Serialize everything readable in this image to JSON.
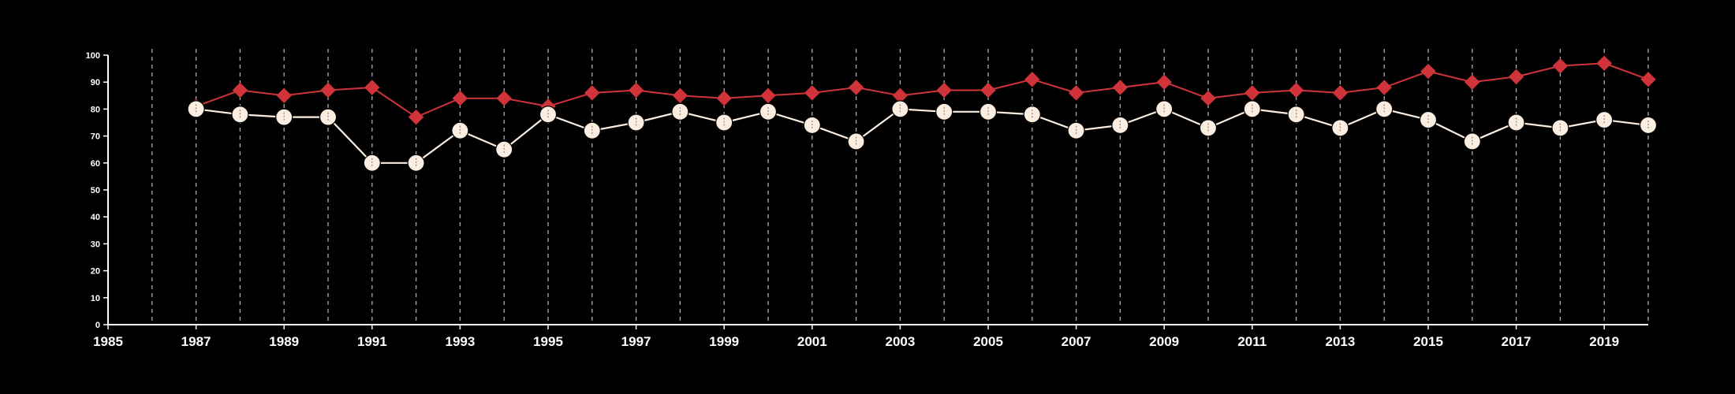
{
  "chart_data": {
    "type": "line",
    "title": "",
    "xlabel": "",
    "ylabel": "",
    "x": [
      1987,
      1988,
      1989,
      1990,
      1991,
      1992,
      1993,
      1994,
      1995,
      1996,
      1997,
      1998,
      1999,
      2000,
      2001,
      2002,
      2003,
      2004,
      2005,
      2006,
      2007,
      2008,
      2009,
      2010,
      2011,
      2012,
      2013,
      2014,
      2015,
      2016,
      2017,
      2018,
      2019,
      2020
    ],
    "xlim": [
      1985,
      2020
    ],
    "ylim": [
      0,
      100
    ],
    "x_ticks": [
      "1985",
      "1987",
      "1989",
      "1991",
      "1993",
      "1995",
      "1997",
      "1999",
      "2001",
      "2003",
      "2005",
      "2007",
      "2009",
      "2011",
      "2013",
      "2015",
      "2017",
      "2019"
    ],
    "y_ticks": [
      "0",
      "10",
      "20",
      "30",
      "40",
      "50",
      "60",
      "70",
      "80",
      "90",
      "100"
    ],
    "grid": "vertical dashed lines at every year",
    "legend": "none",
    "series": [
      {
        "marker": "diamond",
        "color": "#d0343a",
        "values": [
          81,
          87,
          85,
          87,
          88,
          77,
          84,
          84,
          81,
          86,
          87,
          85,
          84,
          85,
          86,
          88,
          85,
          87,
          87,
          91,
          86,
          88,
          90,
          84,
          86,
          87,
          86,
          88,
          94,
          90,
          92,
          96,
          97,
          91
        ]
      },
      {
        "marker": "circle",
        "color": "#fbeee0",
        "values": [
          80,
          78,
          77,
          77,
          60,
          60,
          72,
          65,
          78,
          72,
          75,
          79,
          75,
          79,
          74,
          68,
          80,
          79,
          79,
          78,
          72,
          74,
          80,
          73,
          80,
          78,
          73,
          80,
          76,
          68,
          75,
          73,
          76,
          74
        ]
      }
    ]
  }
}
